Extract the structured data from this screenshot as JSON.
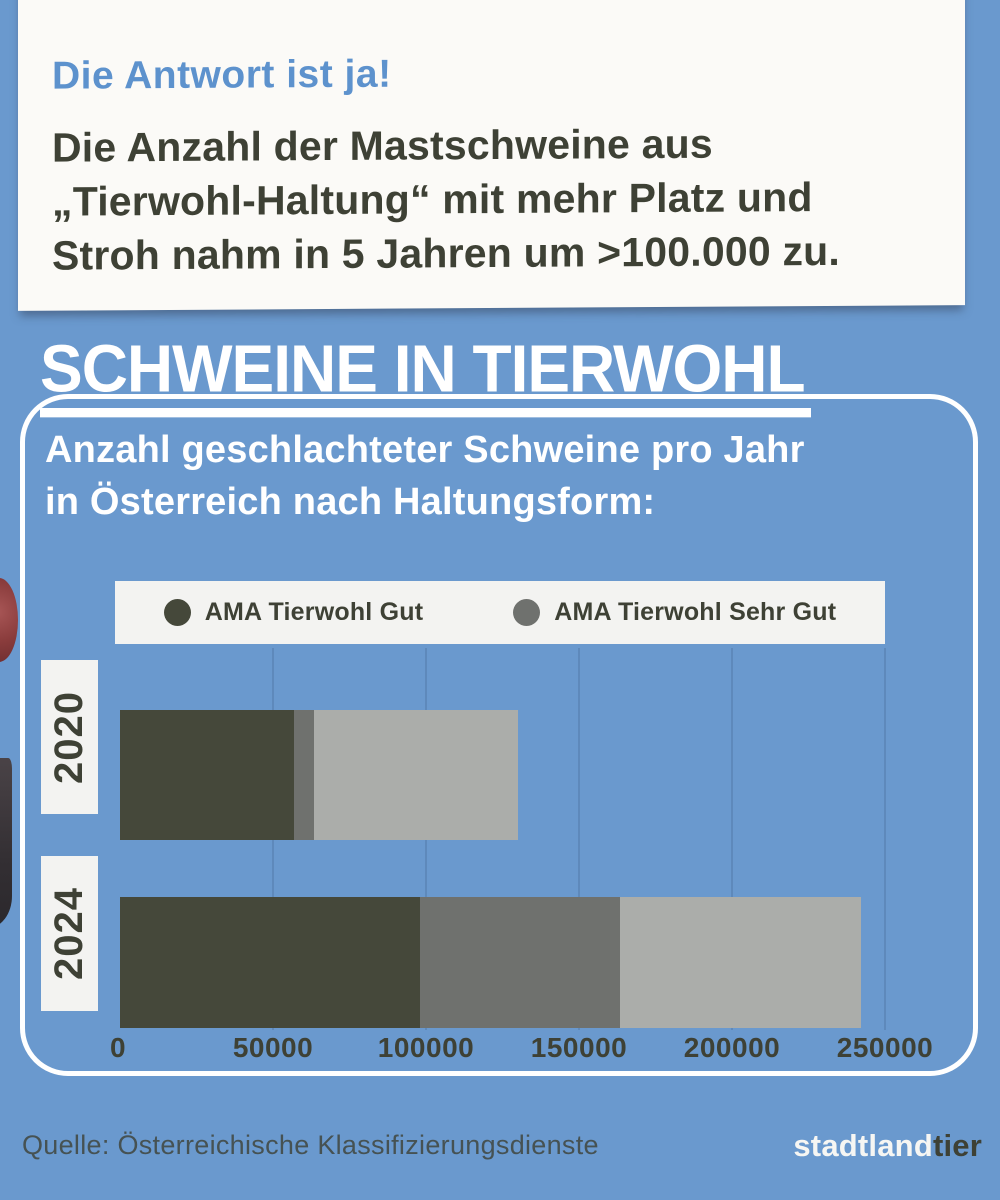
{
  "colors": {
    "background": "#6a99ce",
    "card_bg": "#fbfaf7",
    "accent_blue": "#5d92cd",
    "dark_text": "#3e4135",
    "panel_border": "#ffffff",
    "chip_bg": "#f3f3f1",
    "bar_dark": "#45483a",
    "bar_gray": "#6f716e",
    "bar_light": "#abadaa"
  },
  "card": {
    "kicker": "Die Antwort ist ja!",
    "body_lines": [
      "Die Anzahl der Mastschweine aus",
      "„Tierwohl-Haltung“ mit mehr Platz und",
      "Stroh nahm in 5 Jahren um >100.000 zu."
    ]
  },
  "title": "SCHWEINE IN TIERWOHL",
  "chart_panel": {
    "heading_lines": [
      "Anzahl geschlachteter Schweine pro Jahr",
      "in Österreich nach Haltungsform:"
    ]
  },
  "chart_data": {
    "type": "bar",
    "orientation": "horizontal",
    "stacked": true,
    "title": "Anzahl geschlachteter Schweine pro Jahr in Österreich nach Haltungsform:",
    "categories": [
      "2020",
      "2024"
    ],
    "series": [
      {
        "name": "AMA Tierwohl Gut",
        "color_key": "bar_dark",
        "values": [
          57000,
          98000
        ]
      },
      {
        "name": "AMA Tierwohl Sehr Gut",
        "color_key": "bar_gray",
        "values": [
          6500,
          65500
        ]
      },
      {
        "name": "",
        "color_key": "bar_light",
        "values": [
          66500,
          78500
        ]
      }
    ],
    "totals": [
      130000,
      242000
    ],
    "legend": {
      "position": "top",
      "entries": [
        "AMA Tierwohl Gut",
        "AMA Tierwohl Sehr Gut"
      ]
    },
    "x_ticks": [
      0,
      50000,
      100000,
      150000,
      200000,
      250000
    ],
    "xlim": [
      0,
      250000
    ],
    "grid": "vertical"
  },
  "footer": {
    "source": "Quelle: Österreichische Klassifizierungsdienste",
    "logo_part1": "stadtland",
    "logo_part2": "tier"
  }
}
